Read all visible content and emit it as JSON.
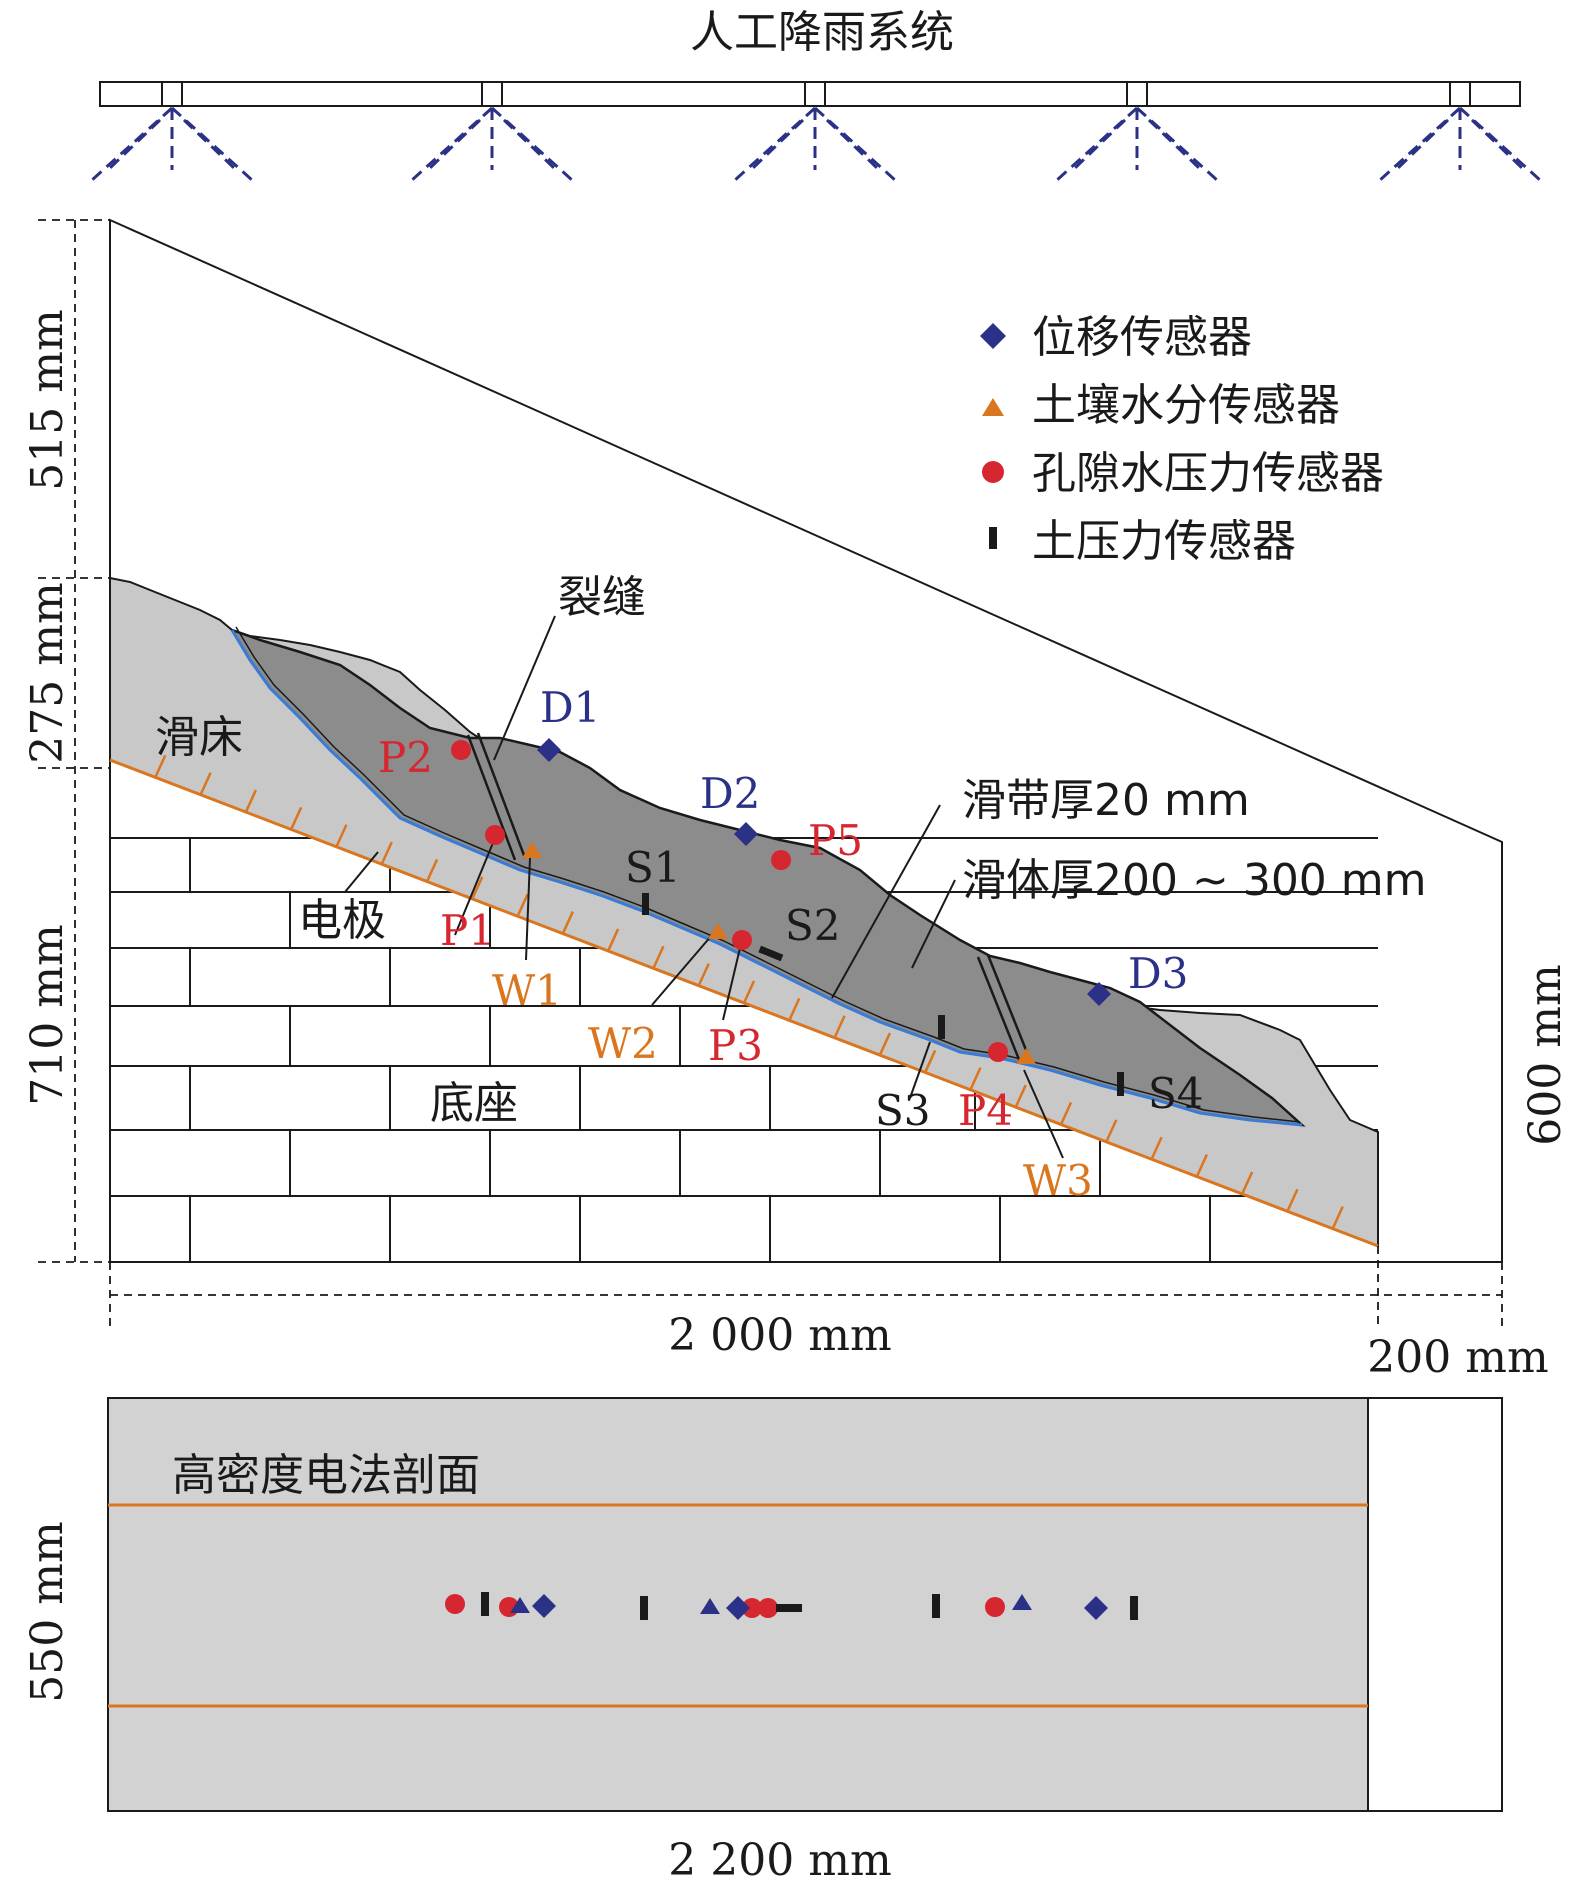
{
  "title": "人工降雨系统",
  "colors": {
    "blue": "#2b3186",
    "orange": "#d9761f",
    "red": "#d6262f",
    "black": "#1a1a1a",
    "slideBody": "#8c8c8c",
    "bed": "#c8c8c8",
    "plan": "#d2d2d2"
  },
  "legend": [
    {
      "icon": "diamond-icon",
      "label": "位移传感器"
    },
    {
      "icon": "triangle-icon",
      "label": "土壤水分传感器"
    },
    {
      "icon": "circle-icon",
      "label": "孔隙水压力传感器"
    },
    {
      "icon": "bar-icon",
      "label": "土压力传感器"
    }
  ],
  "labels": {
    "crack": "裂缝",
    "bed": "滑床",
    "electrode": "电极",
    "base": "底座",
    "slipZone": "滑带厚20 mm",
    "slideBody": "滑体厚200 ~ 300 mm",
    "plan": "高密度电法剖面"
  },
  "sensors": {
    "D1": "D1",
    "D2": "D2",
    "D3": "D3",
    "P1": "P1",
    "P2": "P2",
    "P3": "P3",
    "P4": "P4",
    "P5": "P5",
    "W1": "W1",
    "W2": "W2",
    "W3": "W3",
    "S1": "S1",
    "S2": "S2",
    "S3": "S3",
    "S4": "S4"
  },
  "dimensions": {
    "d515": "515 mm",
    "d275": "275 mm",
    "d710": "710 mm",
    "d600": "600 mm",
    "d2000": "2 000 mm",
    "d200": "200 mm",
    "d550": "550 mm",
    "d2200": "2 200 mm"
  }
}
